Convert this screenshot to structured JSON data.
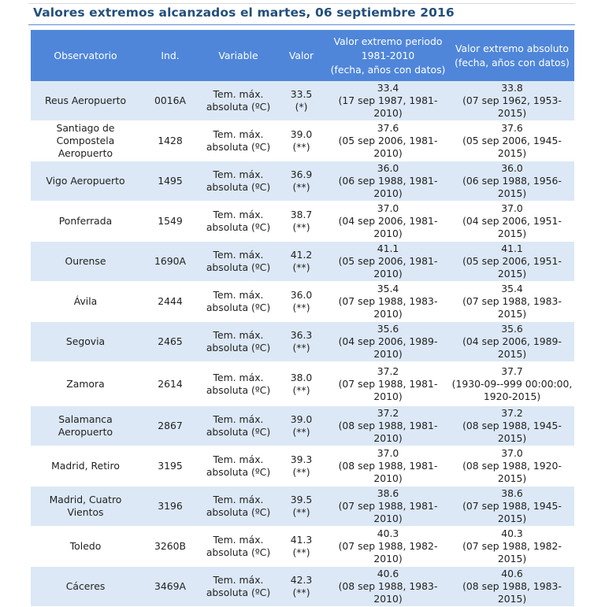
{
  "title": "Valores extremos alcanzados el martes, 06 septiembre 2016",
  "columns": {
    "observatorio": "Observatorio",
    "ind": "Ind.",
    "variable": "Variable",
    "valor": "Valor",
    "periodo": "Valor extremo periodo\n1981-2010\n(fecha, años con datos)",
    "absoluto": "Valor extremo absoluto\n(fecha, años con datos)"
  },
  "rows": [
    {
      "observatorio": "Reus Aeropuerto",
      "ind": "0016A",
      "variable": "Tem. máx.\nabsoluta (ºC)",
      "valor": "33.5\n(*)",
      "periodo": "33.4\n(17 sep 1987, 1981-2010)",
      "absoluto": "33.8\n(07 sep 1962, 1953-2015)"
    },
    {
      "observatorio": "Santiago de Compostela\nAeropuerto",
      "ind": "1428",
      "variable": "Tem. máx.\nabsoluta (ºC)",
      "valor": "39.0\n(**)",
      "periodo": "37.6\n(05 sep 2006, 1981-2010)",
      "absoluto": "37.6\n(05 sep 2006, 1945-2015)"
    },
    {
      "observatorio": "Vigo Aeropuerto",
      "ind": "1495",
      "variable": "Tem. máx.\nabsoluta (ºC)",
      "valor": "36.9\n(**)",
      "periodo": "36.0\n(06 sep 1988, 1981-2010)",
      "absoluto": "36.0\n(06 sep 1988, 1956-2015)"
    },
    {
      "observatorio": "Ponferrada",
      "ind": "1549",
      "variable": "Tem. máx.\nabsoluta (ºC)",
      "valor": "38.7\n(**)",
      "periodo": "37.0\n(04 sep 2006, 1981-2010)",
      "absoluto": "37.0\n(04 sep 2006, 1951-2015)"
    },
    {
      "observatorio": "Ourense",
      "ind": "1690A",
      "variable": "Tem. máx.\nabsoluta (ºC)",
      "valor": "41.2\n(**)",
      "periodo": "41.1\n(05 sep 2006, 1981-2010)",
      "absoluto": "41.1\n(05 sep 2006, 1951-2015)"
    },
    {
      "observatorio": "Ávila",
      "ind": "2444",
      "variable": "Tem. máx.\nabsoluta (ºC)",
      "valor": "36.0\n(**)",
      "periodo": "35.4\n(07 sep 1988, 1983-2010)",
      "absoluto": "35.4\n(07 sep 1988, 1983-2015)"
    },
    {
      "observatorio": "Segovia",
      "ind": "2465",
      "variable": "Tem. máx.\nabsoluta (ºC)",
      "valor": "36.3\n(**)",
      "periodo": "35.6\n(04 sep 2006, 1989-2010)",
      "absoluto": "35.6\n(04 sep 2006, 1989-2015)"
    },
    {
      "observatorio": "Zamora",
      "ind": "2614",
      "variable": "Tem. máx.\nabsoluta (ºC)",
      "valor": "38.0\n(**)",
      "periodo": "37.2\n(07 sep 1988, 1981-2010)",
      "absoluto": "37.7\n(1930-09--999 00:00:00,\n1920-2015)"
    },
    {
      "observatorio": "Salamanca Aeropuerto",
      "ind": "2867",
      "variable": "Tem. máx.\nabsoluta (ºC)",
      "valor": "39.0\n(**)",
      "periodo": "37.2\n(08 sep 1988, 1981-2010)",
      "absoluto": "37.2\n(08 sep 1988, 1945-2015)"
    },
    {
      "observatorio": "Madrid, Retiro",
      "ind": "3195",
      "variable": "Tem. máx.\nabsoluta (ºC)",
      "valor": "39.3\n(**)",
      "periodo": "37.0\n(08 sep 1988, 1981-2010)",
      "absoluto": "37.0\n(08 sep 1988, 1920-2015)"
    },
    {
      "observatorio": "Madrid, Cuatro Vientos",
      "ind": "3196",
      "variable": "Tem. máx.\nabsoluta (ºC)",
      "valor": "39.5\n(**)",
      "periodo": "38.6\n(07 sep 1988, 1981-2010)",
      "absoluto": "38.6\n(07 sep 1988, 1945-2015)"
    },
    {
      "observatorio": "Toledo",
      "ind": "3260B",
      "variable": "Tem. máx.\nabsoluta (ºC)",
      "valor": "41.3\n(**)",
      "periodo": "40.3\n(07 sep 1988, 1982-2010)",
      "absoluto": "40.3\n(07 sep 1988, 1982-2015)"
    },
    {
      "observatorio": "Cáceres",
      "ind": "3469A",
      "variable": "Tem. máx.\nabsoluta (ºC)",
      "valor": "42.3\n(**)",
      "periodo": "40.6\n(08 sep 1988, 1983-2010)",
      "absoluto": "40.6\n(08 sep 1988, 1983-2015)"
    }
  ]
}
